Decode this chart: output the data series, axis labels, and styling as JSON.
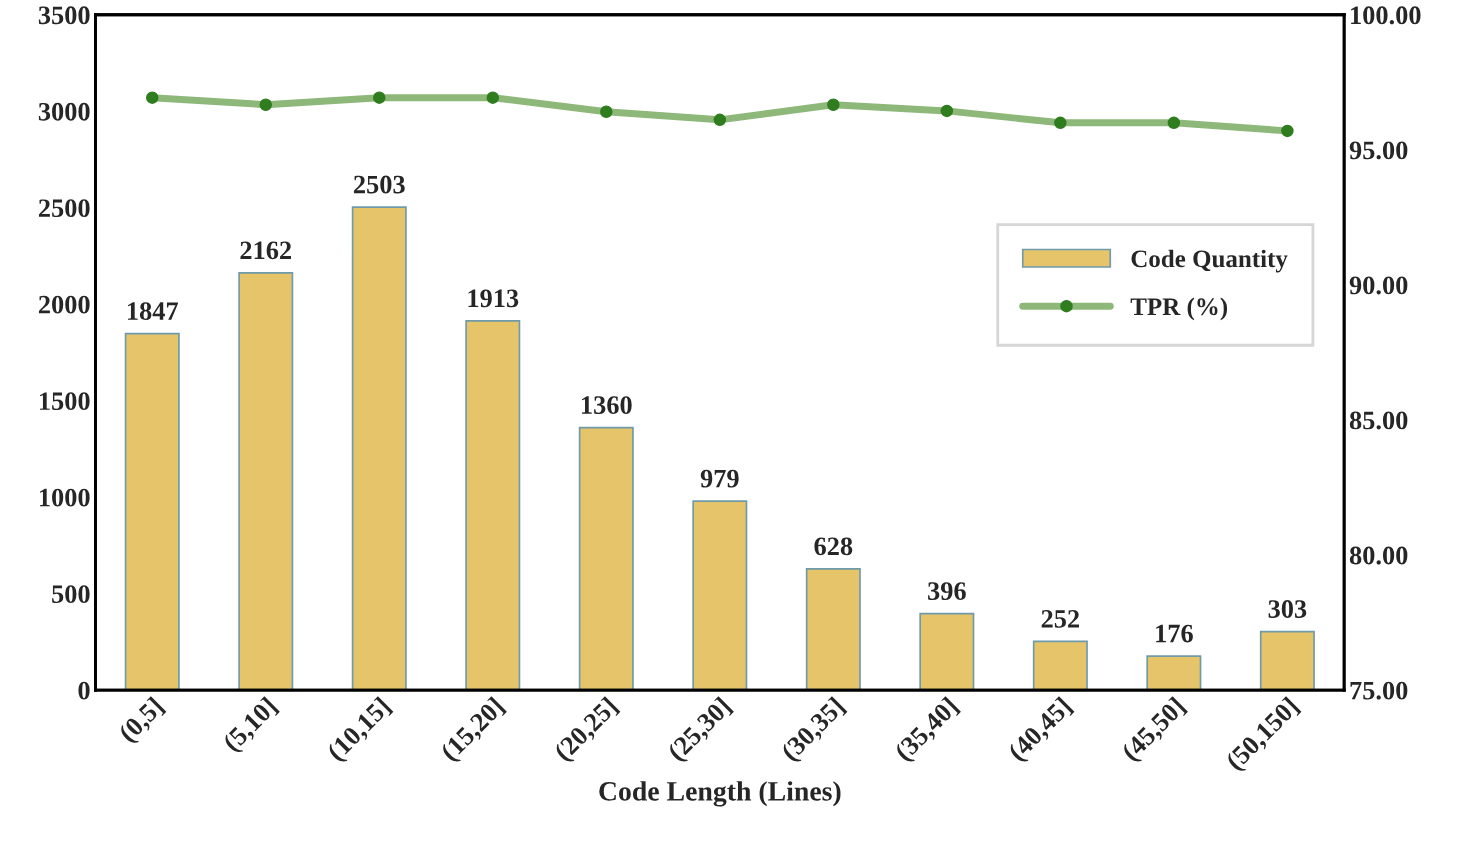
{
  "chart_data": {
    "type": "bar",
    "xlabel": "Code Length (Lines)",
    "categories": [
      "(0,5]",
      "(5,10]",
      "(10,15]",
      "(15,20]",
      "(20,25]",
      "(25,30]",
      "(30,35]",
      "(35,40]",
      "(40,45]",
      "(45,50]",
      "(50,150]"
    ],
    "series": [
      {
        "name": "Code Quantity",
        "color": "#e6c46a",
        "values": [
          1847,
          2162,
          2503,
          1913,
          1360,
          979,
          628,
          396,
          252,
          176,
          303
        ],
        "value_labels": [
          "1847",
          "2162",
          "2503",
          "1913",
          "1360",
          "979",
          "628",
          "396",
          "252",
          "176",
          "303"
        ]
      },
      {
        "name": "TPR (%)",
        "type": "line",
        "axis": "y2",
        "color": "#8db87a",
        "marker": "circle",
        "values": [
          96.93,
          96.67,
          96.93,
          96.93,
          96.41,
          96.11,
          96.67,
          96.44,
          96.0,
          96.0,
          95.7
        ]
      }
    ],
    "ylim": [
      0,
      3500
    ],
    "yticks": [
      0,
      500,
      1000,
      1500,
      2000,
      2500,
      3000,
      3500
    ],
    "y2lim": [
      75,
      100
    ],
    "y2ticks": [
      {
        "value": 75,
        "label": "75.00"
      },
      {
        "value": 80,
        "label": "80.00"
      },
      {
        "value": 85,
        "label": "85.00"
      },
      {
        "value": 90,
        "label": "90.00"
      },
      {
        "value": 95,
        "label": "95.00"
      },
      {
        "value": 100,
        "label": "100.00"
      }
    ],
    "grid": false,
    "legend": "right"
  }
}
